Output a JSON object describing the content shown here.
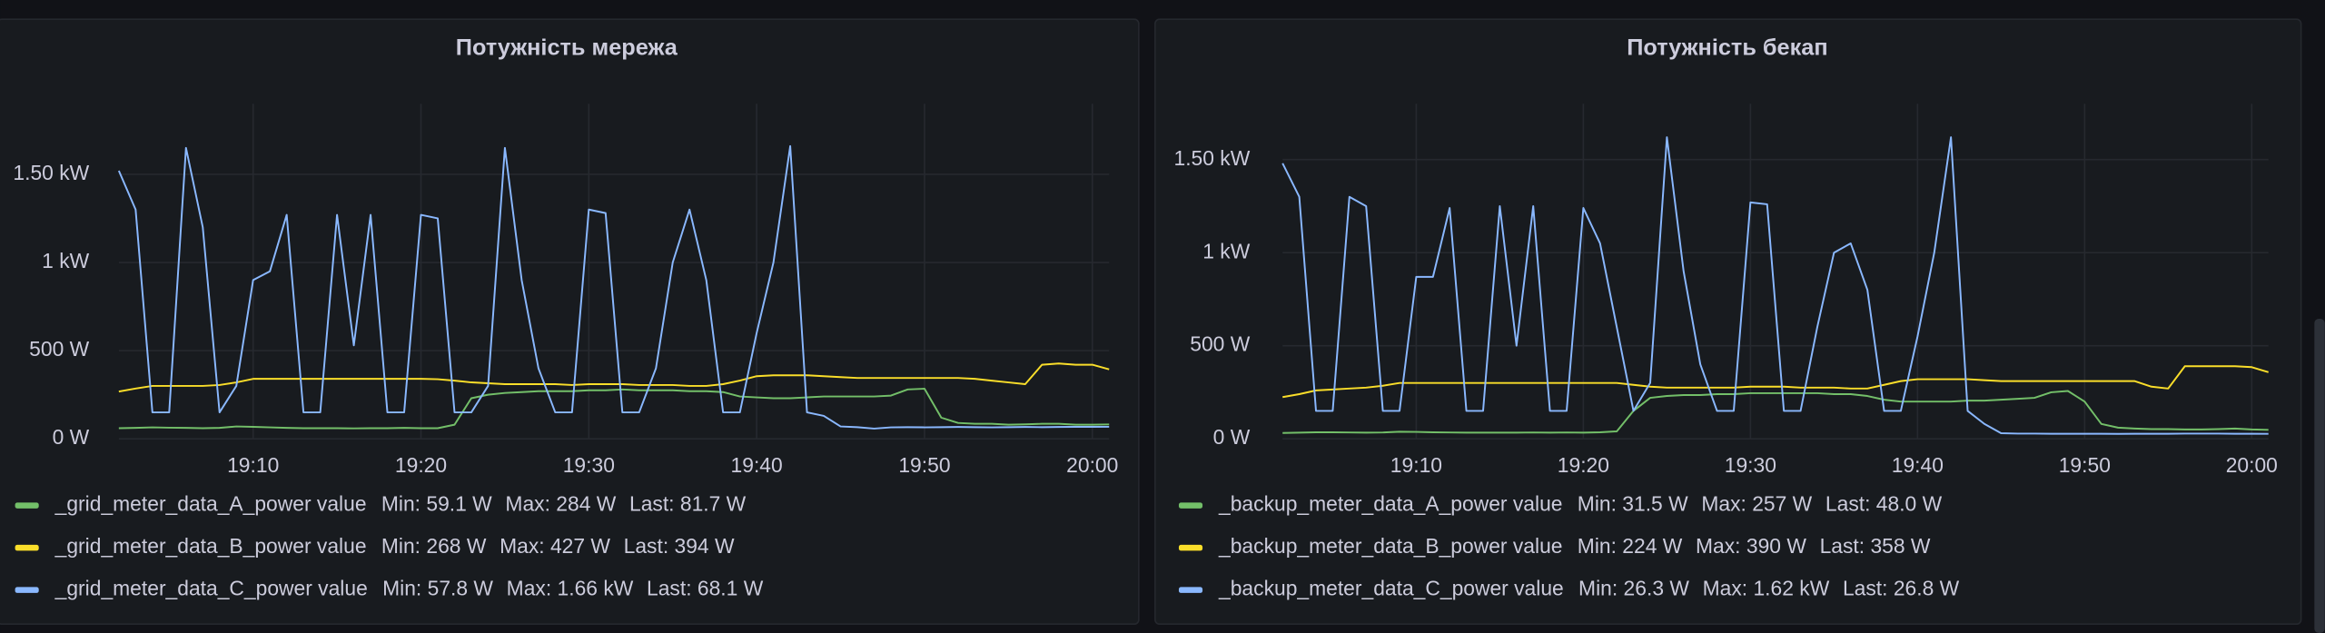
{
  "chart_data": [
    {
      "type": "line",
      "title": "Потужність мережа",
      "x": [
        "19:02",
        "19:03",
        "19:04",
        "19:05",
        "19:06",
        "19:07",
        "19:08",
        "19:09",
        "19:10",
        "19:11",
        "19:12",
        "19:13",
        "19:14",
        "19:15",
        "19:16",
        "19:17",
        "19:18",
        "19:19",
        "19:20",
        "19:21",
        "19:22",
        "19:23",
        "19:24",
        "19:25",
        "19:26",
        "19:27",
        "19:28",
        "19:29",
        "19:30",
        "19:31",
        "19:32",
        "19:33",
        "19:34",
        "19:35",
        "19:36",
        "19:37",
        "19:38",
        "19:39",
        "19:40",
        "19:41",
        "19:42",
        "19:43",
        "19:44",
        "19:45",
        "19:46",
        "19:47",
        "19:48",
        "19:49",
        "19:50",
        "19:51",
        "19:52",
        "19:53",
        "19:54",
        "19:55",
        "19:56",
        "19:57",
        "19:58",
        "19:59",
        "20:00",
        "20:01"
      ],
      "xlim": [
        "19:02",
        "20:01"
      ],
      "xticks": [
        "19:10",
        "19:20",
        "19:30",
        "19:40",
        "19:50",
        "20:00"
      ],
      "ylim": [
        0,
        1900
      ],
      "yticks": [
        {
          "value": 0,
          "label": "0 W"
        },
        {
          "value": 500,
          "label": "500 W"
        },
        {
          "value": 1000,
          "label": "1 kW"
        },
        {
          "value": 1500,
          "label": "1.50 kW"
        }
      ],
      "grid": true,
      "series": [
        {
          "name": "_grid_meter_data_A_power value",
          "color": "#73bf69",
          "values": [
            60,
            62,
            65,
            63,
            62,
            60,
            62,
            70,
            68,
            65,
            62,
            60,
            60,
            60,
            59.1,
            60,
            60,
            62,
            60,
            60,
            80,
            230,
            250,
            260,
            265,
            270,
            270,
            270,
            275,
            275,
            280,
            275,
            275,
            275,
            270,
            270,
            265,
            240,
            235,
            230,
            230,
            235,
            240,
            240,
            240,
            240,
            245,
            280,
            284,
            120,
            90,
            85,
            85,
            80,
            82,
            85,
            85,
            80,
            80,
            81.7
          ],
          "stats": [
            {
              "value": 59.1,
              "label": "Min: 59.1 W"
            },
            {
              "value": 284,
              "label": "Max: 284 W"
            },
            {
              "value": 81.7,
              "label": "Last: 81.7 W"
            }
          ]
        },
        {
          "name": "_grid_meter_data_B_power value",
          "color": "#fade2a",
          "values": [
            268,
            285,
            300,
            300,
            300,
            300,
            305,
            320,
            340,
            340,
            340,
            340,
            340,
            340,
            340,
            340,
            340,
            340,
            340,
            338,
            330,
            320,
            315,
            310,
            310,
            310,
            310,
            305,
            310,
            310,
            310,
            305,
            305,
            305,
            300,
            300,
            310,
            330,
            355,
            360,
            360,
            360,
            355,
            350,
            345,
            345,
            345,
            345,
            345,
            345,
            345,
            340,
            330,
            320,
            310,
            420,
            427,
            420,
            420,
            394
          ],
          "stats": [
            {
              "value": 268,
              "label": "Min: 268 W"
            },
            {
              "value": 427,
              "label": "Max: 427 W"
            },
            {
              "value": 394,
              "label": "Last: 394 W"
            }
          ]
        },
        {
          "name": "_grid_meter_data_C_power value",
          "color": "#8ab8ff",
          "values": [
            1520,
            1300,
            150,
            150,
            1650,
            1200,
            150,
            300,
            900,
            950,
            1270,
            150,
            150,
            1270,
            530,
            1270,
            150,
            150,
            1270,
            1250,
            150,
            150,
            300,
            1650,
            900,
            400,
            150,
            150,
            1300,
            1280,
            150,
            150,
            400,
            1000,
            1300,
            900,
            150,
            150,
            600,
            1000,
            1660,
            150,
            130,
            70,
            66,
            57.8,
            65,
            66,
            65,
            66,
            67,
            66,
            65,
            66,
            67,
            66,
            67,
            68,
            68,
            68.1
          ],
          "stats": [
            {
              "value": 57.8,
              "label": "Min: 57.8 W"
            },
            {
              "value": 1660,
              "label": "Max: 1.66 kW"
            },
            {
              "value": 68.1,
              "label": "Last: 68.1 W"
            }
          ]
        }
      ]
    },
    {
      "type": "line",
      "title": "Потужність бекап",
      "x": [
        "19:02",
        "19:03",
        "19:04",
        "19:05",
        "19:06",
        "19:07",
        "19:08",
        "19:09",
        "19:10",
        "19:11",
        "19:12",
        "19:13",
        "19:14",
        "19:15",
        "19:16",
        "19:17",
        "19:18",
        "19:19",
        "19:20",
        "19:21",
        "19:22",
        "19:23",
        "19:24",
        "19:25",
        "19:26",
        "19:27",
        "19:28",
        "19:29",
        "19:30",
        "19:31",
        "19:32",
        "19:33",
        "19:34",
        "19:35",
        "19:36",
        "19:37",
        "19:38",
        "19:39",
        "19:40",
        "19:41",
        "19:42",
        "19:43",
        "19:44",
        "19:45",
        "19:46",
        "19:47",
        "19:48",
        "19:49",
        "19:50",
        "19:51",
        "19:52",
        "19:53",
        "19:54",
        "19:55",
        "19:56",
        "19:57",
        "19:58",
        "19:59",
        "20:00",
        "20:01"
      ],
      "xlim": [
        "19:02",
        "20:01"
      ],
      "xticks": [
        "19:10",
        "19:20",
        "19:30",
        "19:40",
        "19:50",
        "20:00"
      ],
      "ylim": [
        0,
        1800
      ],
      "yticks": [
        {
          "value": 0,
          "label": "0 W"
        },
        {
          "value": 500,
          "label": "500 W"
        },
        {
          "value": 1000,
          "label": "1 kW"
        },
        {
          "value": 1500,
          "label": "1.50 kW"
        }
      ],
      "grid": true,
      "series": [
        {
          "name": "_backup_meter_data_A_power value",
          "color": "#73bf69",
          "values": [
            31.5,
            33,
            35,
            35,
            34,
            33,
            34,
            38,
            37,
            35,
            34,
            33,
            33,
            33,
            33,
            34,
            33,
            34,
            33,
            35,
            40,
            150,
            220,
            230,
            235,
            235,
            240,
            240,
            245,
            245,
            245,
            245,
            245,
            240,
            240,
            230,
            210,
            200,
            200,
            200,
            200,
            205,
            205,
            210,
            215,
            220,
            250,
            257,
            200,
            80,
            60,
            55,
            52,
            52,
            50,
            50,
            52,
            55,
            50,
            48
          ],
          "stats": [
            {
              "value": 31.5,
              "label": "Min: 31.5 W"
            },
            {
              "value": 257,
              "label": "Max: 257 W"
            },
            {
              "value": 48,
              "label": "Last: 48.0 W"
            }
          ]
        },
        {
          "name": "_backup_meter_data_B_power value",
          "color": "#fade2a",
          "values": [
            224,
            240,
            260,
            265,
            270,
            275,
            285,
            300,
            300,
            300,
            300,
            300,
            300,
            300,
            300,
            300,
            300,
            300,
            300,
            300,
            300,
            290,
            280,
            275,
            275,
            275,
            275,
            275,
            280,
            280,
            280,
            275,
            275,
            275,
            270,
            270,
            290,
            310,
            320,
            320,
            320,
            320,
            315,
            310,
            310,
            310,
            310,
            310,
            310,
            310,
            310,
            310,
            280,
            270,
            390,
            390,
            390,
            390,
            385,
            358
          ],
          "stats": [
            {
              "value": 224,
              "label": "Min: 224 W"
            },
            {
              "value": 390,
              "label": "Max: 390 W"
            },
            {
              "value": 358,
              "label": "Last: 358 W"
            }
          ]
        },
        {
          "name": "_backup_meter_data_C_power value",
          "color": "#8ab8ff",
          "values": [
            1480,
            1300,
            150,
            150,
            1300,
            1250,
            150,
            150,
            870,
            870,
            1240,
            150,
            150,
            1250,
            500,
            1250,
            150,
            150,
            1240,
            1050,
            600,
            150,
            300,
            1620,
            900,
            400,
            150,
            150,
            1270,
            1260,
            150,
            150,
            600,
            1000,
            1050,
            800,
            150,
            150,
            550,
            1000,
            1620,
            150,
            80,
            30,
            28,
            28,
            27,
            27,
            27,
            27,
            26.3,
            27,
            27,
            27,
            28,
            28,
            28,
            27,
            27,
            26.8
          ],
          "stats": [
            {
              "value": 26.3,
              "label": "Min: 26.3 W"
            },
            {
              "value": 1620,
              "label": "Max: 1.62 kW"
            },
            {
              "value": 26.8,
              "label": "Last: 26.8 W"
            }
          ]
        }
      ]
    }
  ]
}
